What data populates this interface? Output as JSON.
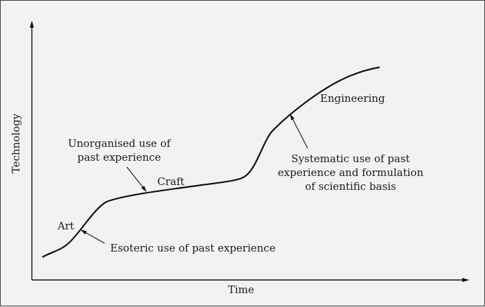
{
  "axes": {
    "x_label": "Time",
    "y_label": "Technology"
  },
  "stages": {
    "art": "Art",
    "craft": "Craft",
    "engineering": "Engineering"
  },
  "annotations": {
    "esoteric": "Esoteric use of past experience",
    "unorganised": [
      "Unorganised use of",
      "past experience"
    ],
    "systematic": [
      "Systematic use of past",
      "experience and formulation",
      "of scientific basis"
    ]
  },
  "colors": {
    "line": "#111111",
    "background": "#f2f2f2",
    "text": "#1a1a1a"
  }
}
